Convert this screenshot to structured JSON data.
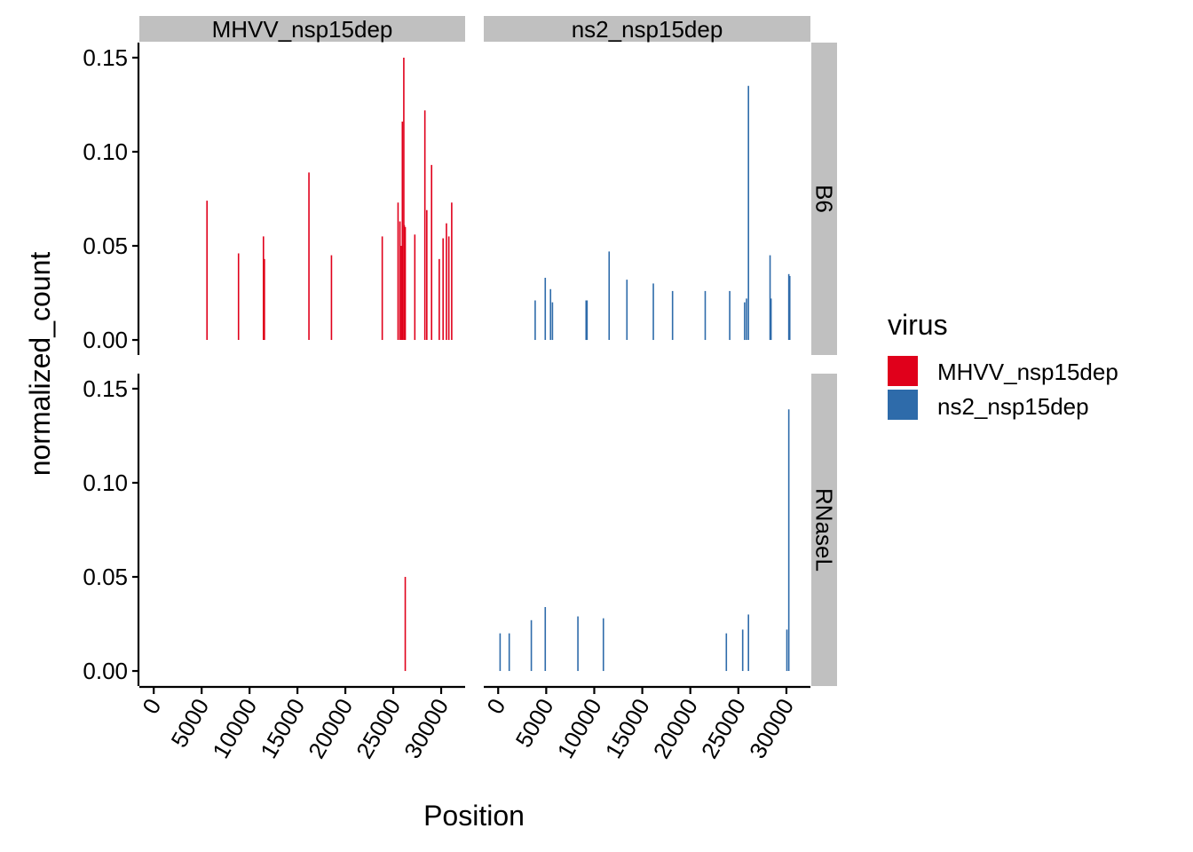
{
  "chart_data": {
    "type": "bar",
    "xlabel": "Position",
    "ylabel": "normalized_count",
    "xlim": [
      -1500,
      32500
    ],
    "ylim": [
      -0.008,
      0.158
    ],
    "x_ticks": [
      0,
      5000,
      10000,
      15000,
      20000,
      25000,
      30000
    ],
    "x_tick_labels": [
      "0",
      "5000",
      "10000",
      "15000",
      "20000",
      "25000",
      "30000"
    ],
    "y_ticks": [
      0,
      0.05,
      0.1,
      0.15
    ],
    "y_tick_labels": [
      "0.00",
      "0.05",
      "0.10",
      "0.15"
    ],
    "legend": {
      "title": "virus",
      "position": "right",
      "entries": [
        {
          "label": "MHVV_nsp15dep",
          "color": "#E0001B"
        },
        {
          "label": "ns2_nsp15dep",
          "color": "#2E6BAA"
        }
      ]
    },
    "facet_cols": [
      {
        "label": "MHVV_nsp15dep",
        "color": "#E0001B"
      },
      {
        "label": "ns2_nsp15dep",
        "color": "#2E6BAA"
      }
    ],
    "facet_rows": [
      {
        "label": "B6"
      },
      {
        "label": "RNaseL"
      }
    ],
    "panels": [
      {
        "row": 0,
        "col": 0,
        "x": [
          5560,
          8850,
          11450,
          11550,
          16200,
          18550,
          23850,
          25500,
          25700,
          25850,
          25950,
          26100,
          26150,
          26250,
          27250,
          28300,
          28500,
          29000,
          29800,
          30200,
          30550,
          30800,
          31100
        ],
        "y": [
          0.074,
          0.046,
          0.055,
          0.043,
          0.089,
          0.045,
          0.055,
          0.073,
          0.063,
          0.05,
          0.116,
          0.15,
          0.061,
          0.06,
          0.056,
          0.122,
          0.069,
          0.093,
          0.043,
          0.054,
          0.062,
          0.055,
          0.073
        ]
      },
      {
        "row": 0,
        "col": 1,
        "x": [
          3850,
          4900,
          5450,
          5650,
          9150,
          9250,
          11550,
          13400,
          16150,
          18150,
          21550,
          24100,
          25650,
          25850,
          26050,
          28300,
          28400,
          30250,
          30350
        ],
        "y": [
          0.021,
          0.033,
          0.027,
          0.02,
          0.021,
          0.021,
          0.047,
          0.032,
          0.03,
          0.026,
          0.026,
          0.026,
          0.02,
          0.022,
          0.135,
          0.045,
          0.022,
          0.035,
          0.034
        ]
      },
      {
        "row": 1,
        "col": 0,
        "x": [
          26250
        ],
        "y": [
          0.05
        ]
      },
      {
        "row": 1,
        "col": 1,
        "x": [
          200,
          1150,
          3450,
          4900,
          8300,
          10950,
          23750,
          25450,
          26050,
          30050,
          30250
        ],
        "y": [
          0.02,
          0.02,
          0.027,
          0.034,
          0.029,
          0.028,
          0.02,
          0.022,
          0.03,
          0.022,
          0.139
        ]
      }
    ]
  }
}
